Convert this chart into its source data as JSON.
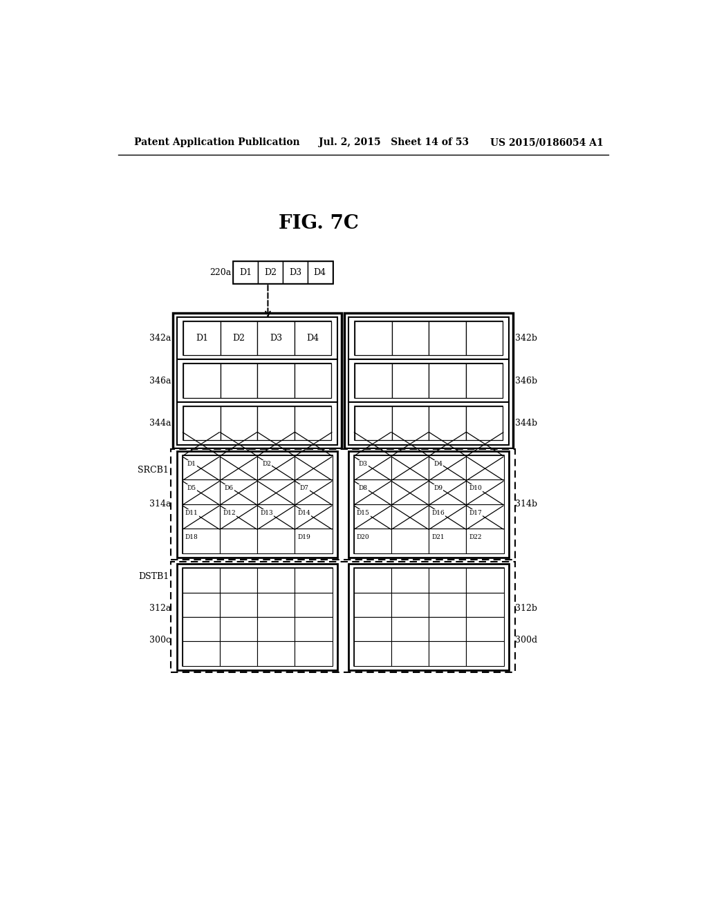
{
  "title": "FIG. 7C",
  "header_left": "Patent Application Publication",
  "header_mid": "Jul. 2, 2015   Sheet 14 of 53",
  "header_right": "US 2015/0186054 A1",
  "bg_color": "#ffffff",
  "top_box_labels": [
    "D1",
    "D2",
    "D3",
    "D4"
  ],
  "top_box_label": "220a",
  "row_labels_left": [
    "342a",
    "346a",
    "344a"
  ],
  "row_labels_right": [
    "342b",
    "346b",
    "344b"
  ],
  "row_top_cells": [
    "D1",
    "D2",
    "D3",
    "D4"
  ],
  "srcb_label": "SRCB1",
  "srcb_label_left": "314a",
  "srcb_label_right": "314b",
  "srcb_left_cells": [
    "D1",
    "",
    "D2",
    "",
    "D5",
    "D6",
    "",
    "D7",
    "D11",
    "D12",
    "D13",
    "D14",
    "D18",
    "",
    "",
    "D19"
  ],
  "srcb_right_cells": [
    "D3",
    "",
    "D4",
    "",
    "D8",
    "",
    "D9",
    "D10",
    "D15",
    "",
    "D16",
    "D17",
    "D20",
    "",
    "D21",
    "D22"
  ],
  "dstb_label": "DSTB1",
  "dstb_label_left": "312a",
  "dstb_label_left2": "300c",
  "dstb_label_right": "312b",
  "dstb_label_right2": "300d"
}
